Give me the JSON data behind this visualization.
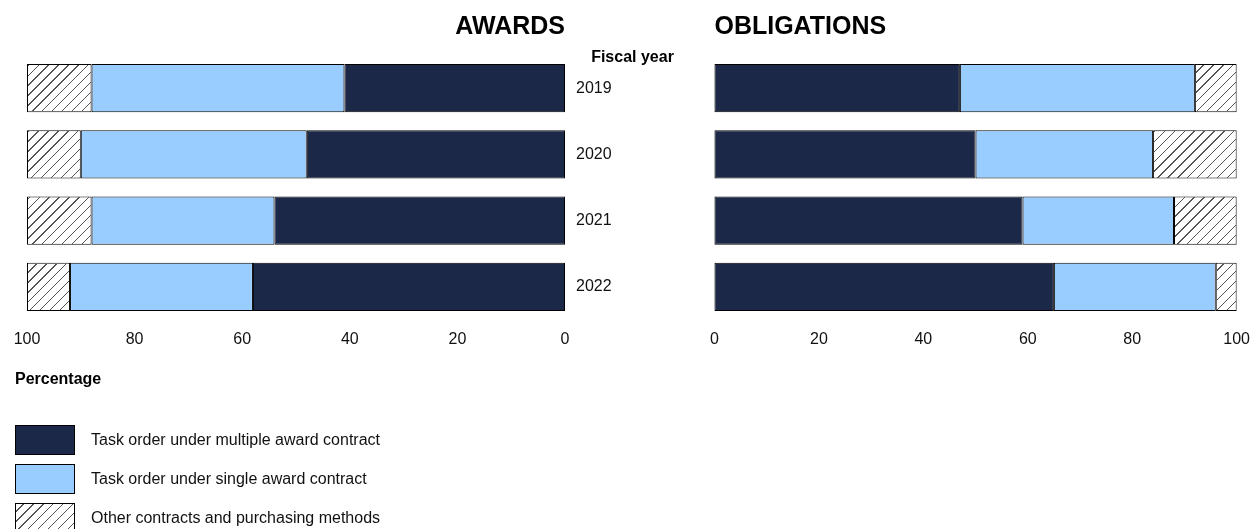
{
  "chart_data": [
    {
      "type": "bar",
      "title": "AWARDS",
      "orientation": "horizontal",
      "stacked": true,
      "ylabel": "Fiscal year",
      "xlabel": "Percentage",
      "categories": [
        "2019",
        "2020",
        "2021",
        "2022"
      ],
      "xlim": [
        100,
        0
      ],
      "xticks": [
        100,
        80,
        60,
        40,
        20,
        0
      ],
      "grid": false,
      "legend": "bottom",
      "series": [
        {
          "name": "Task order under multiple award contract",
          "color": "#1b2847",
          "values": [
            41,
            48,
            54,
            58
          ]
        },
        {
          "name": "Task order under single award contract",
          "color": "#99ccff",
          "values": [
            47,
            42,
            34,
            34
          ]
        },
        {
          "name": "Other contracts and purchasing methods",
          "color": "#ffffff",
          "values": [
            12,
            10,
            12,
            8
          ]
        }
      ]
    },
    {
      "type": "bar",
      "title": "OBLIGATIONS",
      "orientation": "horizontal",
      "stacked": true,
      "categories": [
        "2019",
        "2020",
        "2021",
        "2022"
      ],
      "xlim": [
        0,
        100
      ],
      "xticks": [
        0,
        20,
        40,
        60,
        80,
        100
      ],
      "grid": false,
      "tick_labels": "x",
      "series": [
        {
          "color": "#1b2847",
          "values": [
            47,
            50,
            59,
            65
          ]
        },
        {
          "color": "#99ccff",
          "values": [
            45,
            34,
            29,
            31
          ]
        },
        {
          "color": "#ffffff",
          "values": [
            8,
            16,
            12,
            4
          ]
        }
      ]
    }
  ]
}
